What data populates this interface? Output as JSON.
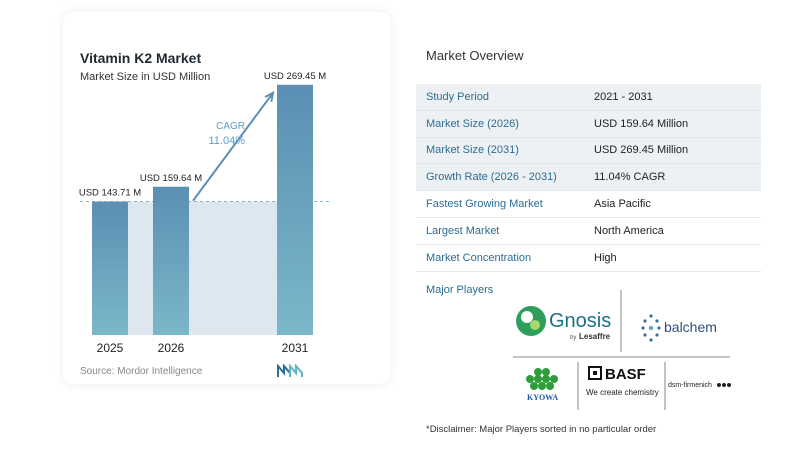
{
  "chart": {
    "title": "Vitamin K2 Market",
    "subtitle": "Market Size in USD Million",
    "source": "Source: Mordor Intelligence",
    "cagr_label": "CAGR",
    "cagr_value": "11.04%"
  },
  "chart_data": {
    "type": "bar",
    "title": "Vitamin K2 Market",
    "subtitle": "Market Size in USD Million",
    "categories": [
      "2025",
      "2026",
      "2031"
    ],
    "values": [
      143.71,
      159.64,
      269.45
    ],
    "data_labels": [
      "USD 143.71 M",
      "USD 159.64 M",
      "USD 269.45 M"
    ],
    "ylim": [
      0,
      280
    ],
    "grid": false,
    "colors": {
      "bar": "#5b8fb3",
      "bar_gradient_end": "#7bb7c9",
      "area": "#dde7f0",
      "arrow": "#5b8fb3",
      "cagr": "#5b9ec9"
    }
  },
  "overview": {
    "title": "Market Overview",
    "rows": [
      {
        "label": "Study Period",
        "value": "2021 - 2031"
      },
      {
        "label": "Market Size (2026)",
        "value": "USD 159.64 Million"
      },
      {
        "label": "Market Size (2031)",
        "value": "USD 269.45 Million"
      },
      {
        "label": "Growth Rate (2026 - 2031)",
        "value": "11.04% CAGR"
      },
      {
        "label": "Fastest Growing Market",
        "value": "Asia Pacific"
      },
      {
        "label": "Largest Market",
        "value": "North America"
      },
      {
        "label": "Market Concentration",
        "value": "High"
      }
    ]
  },
  "players": {
    "label": "Major Players",
    "logos": [
      "Gnosis by Lesaffre",
      "balchem",
      "KYOWA",
      "BASF We create chemistry",
      "dsm-firmenich"
    ],
    "gnosis": "Gnosis",
    "gnosis_sub": "by",
    "gnosis_brand": "Lesaffre",
    "balchem": "balchem",
    "kyowa": "KYOWA",
    "basf": "BASF",
    "basf_tag": "We create chemistry",
    "dsm": "dsm-firmenich"
  },
  "disclaimer": "*Disclaimer: Major Players sorted in no particular order"
}
